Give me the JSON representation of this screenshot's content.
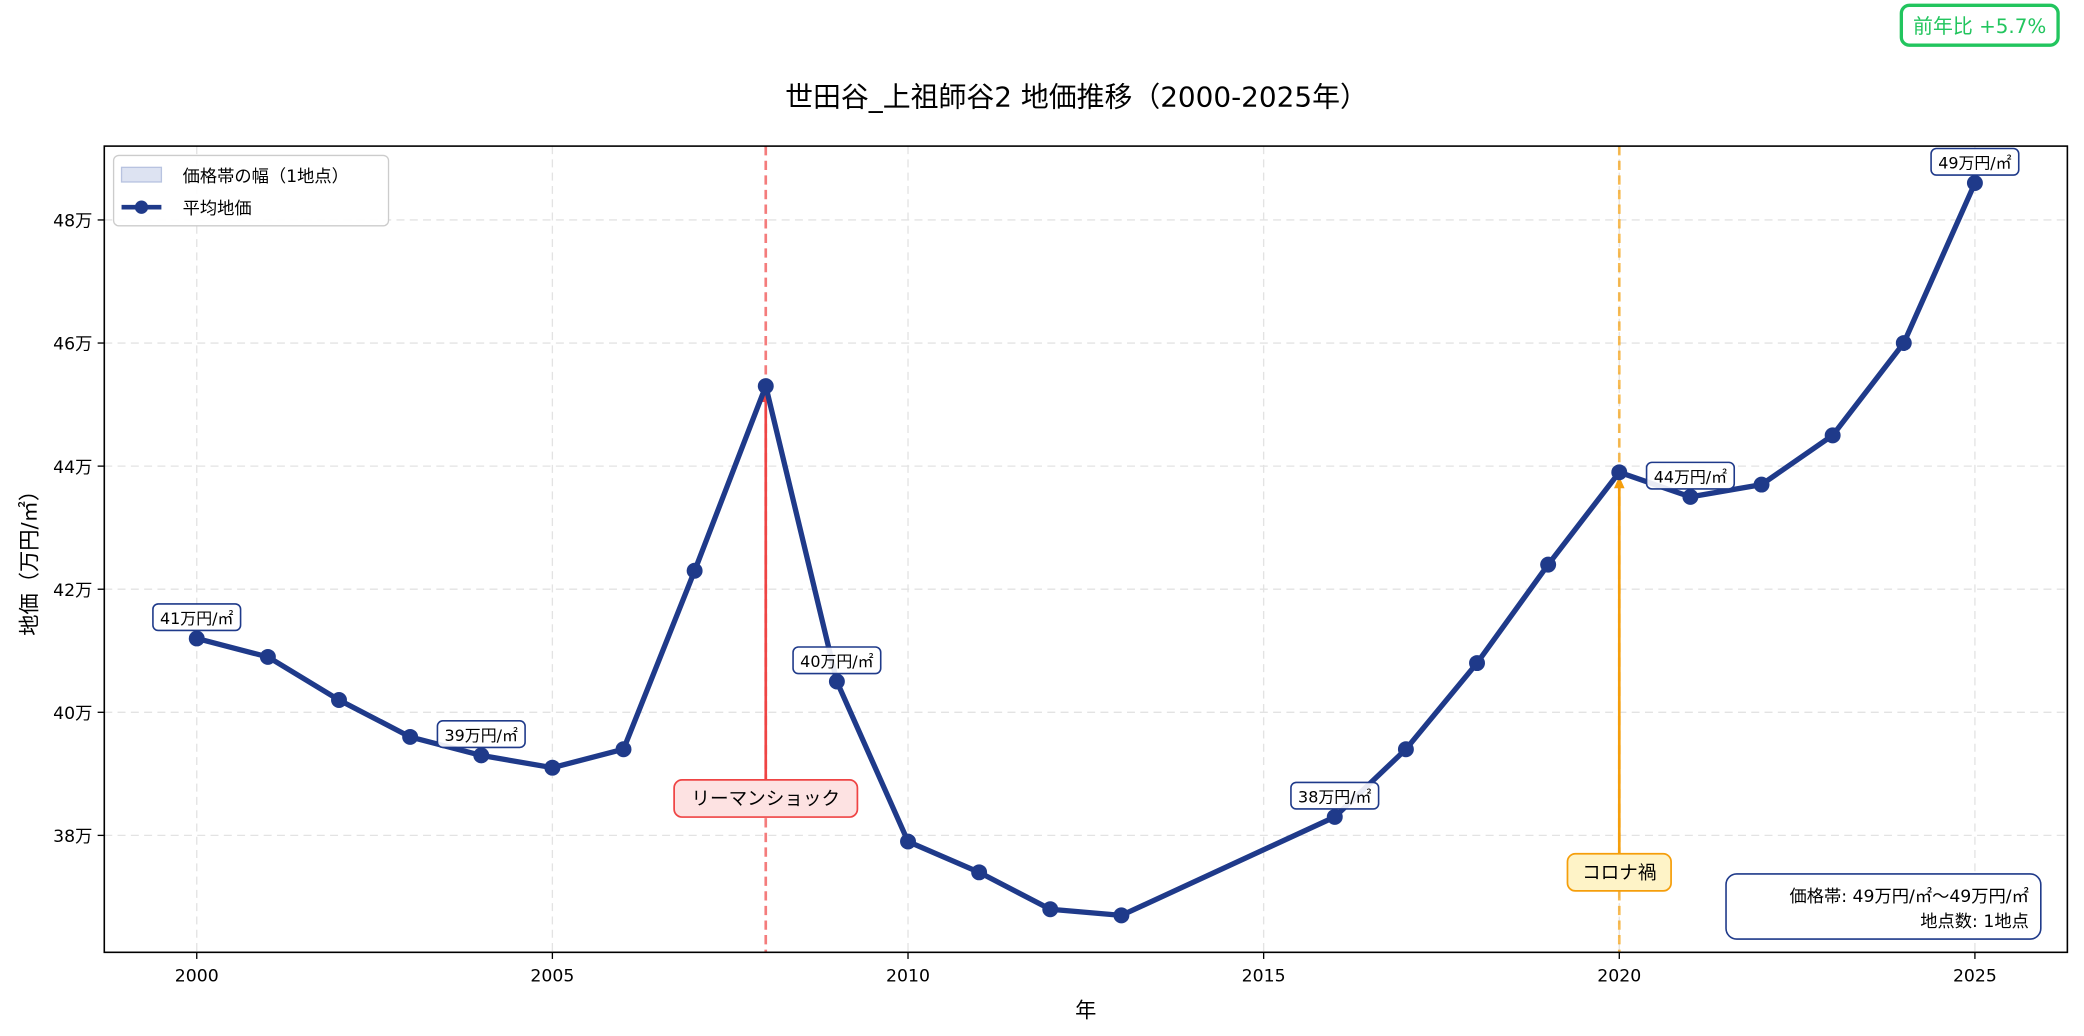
{
  "badge": {
    "text": "前年比 +5.7%",
    "color": "#22c55e"
  },
  "chart_data": {
    "type": "line",
    "title": "世田谷_上祖師谷2 地価推移（2000-2025年）",
    "xlabel": "年",
    "ylabel": "地価（万円/㎡）",
    "xlim": [
      1998.7,
      2026.3
    ],
    "ylim": [
      36.1,
      49.2
    ],
    "grid": true,
    "x_ticks": [
      2000,
      2005,
      2010,
      2015,
      2020,
      2025
    ],
    "x_tick_labels": [
      "2000",
      "2005",
      "2010",
      "2015",
      "2020",
      "2025"
    ],
    "y_ticks": [
      38,
      40,
      42,
      44,
      46,
      48
    ],
    "y_tick_labels": [
      "38万",
      "40万",
      "42万",
      "44万",
      "46万",
      "48万"
    ],
    "legend": {
      "placement": "top-left",
      "entries": [
        "価格帯の幅（1地点）",
        "平均地価"
      ]
    },
    "series": [
      {
        "name": "平均地価",
        "color": "#1f3a8a",
        "x": [
          2000,
          2001,
          2002,
          2003,
          2004,
          2005,
          2006,
          2007,
          2008,
          2009,
          2010,
          2011,
          2012,
          2013,
          2016,
          2017,
          2018,
          2019,
          2020,
          2021,
          2022,
          2023,
          2024,
          2025
        ],
        "values": [
          41.2,
          40.9,
          40.2,
          39.6,
          39.3,
          39.1,
          39.4,
          42.3,
          45.3,
          40.5,
          37.9,
          37.4,
          36.8,
          36.7,
          38.3,
          39.4,
          40.8,
          42.4,
          43.9,
          43.5,
          43.7,
          44.5,
          46.0,
          48.6
        ]
      }
    ],
    "point_labels": [
      {
        "x": 2000,
        "y": 41.2,
        "text": "41万円/㎡"
      },
      {
        "x": 2004,
        "y": 39.3,
        "text": "39万円/㎡"
      },
      {
        "x": 2009,
        "y": 40.5,
        "text": "40万円/㎡"
      },
      {
        "x": 2016,
        "y": 38.3,
        "text": "38万円/㎡"
      },
      {
        "x": 2021,
        "y": 43.5,
        "text": "44万円/㎡"
      },
      {
        "x": 2025,
        "y": 48.6,
        "text": "49万円/㎡"
      }
    ],
    "events": [
      {
        "x": 2008,
        "label": "リーマンショック",
        "label_y": 38.6,
        "target_y": 45.3,
        "color": "#ef4444",
        "fill": "#fde2e2"
      },
      {
        "x": 2020,
        "label": "コロナ禍",
        "label_y": 37.4,
        "target_y": 43.9,
        "color": "#f59e0b",
        "fill": "#fef3c7"
      }
    ],
    "info_box": {
      "lines": [
        "価格帯: 49万円/㎡〜49万円/㎡",
        "地点数: 1地点"
      ],
      "placement": "bottom-right"
    }
  }
}
